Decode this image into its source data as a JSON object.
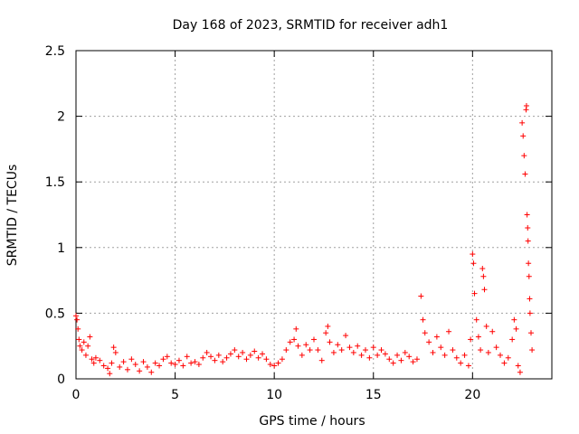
{
  "chart_data": {
    "type": "scatter",
    "title": "Day 168 of 2023, SRMTID for receiver adh1",
    "xlabel": "GPS time / hours",
    "ylabel": "SRMTID / TECUs",
    "xlim": [
      0,
      24
    ],
    "ylim": [
      0,
      2.5
    ],
    "xticks": [
      0,
      5,
      10,
      15,
      20
    ],
    "xtick_labels": [
      "0",
      "5",
      "10",
      "15",
      "20"
    ],
    "yticks": [
      0,
      0.5,
      1,
      1.5,
      2,
      2.5
    ],
    "ytick_labels": [
      "0",
      "0.5",
      "1",
      "1.5",
      "2",
      "2.5"
    ],
    "grid": true,
    "marker": "+",
    "color": "#ff0000",
    "series": [
      {
        "name": "SRMTID",
        "points": [
          [
            0.0,
            0.48
          ],
          [
            0.05,
            0.45
          ],
          [
            0.1,
            0.38
          ],
          [
            0.15,
            0.3
          ],
          [
            0.2,
            0.25
          ],
          [
            0.3,
            0.22
          ],
          [
            0.4,
            0.28
          ],
          [
            0.5,
            0.18
          ],
          [
            0.6,
            0.25
          ],
          [
            0.7,
            0.32
          ],
          [
            0.8,
            0.15
          ],
          [
            0.9,
            0.12
          ],
          [
            1.0,
            0.16
          ],
          [
            1.2,
            0.14
          ],
          [
            1.4,
            0.1
          ],
          [
            1.6,
            0.08
          ],
          [
            1.7,
            0.04
          ],
          [
            1.8,
            0.12
          ],
          [
            1.9,
            0.24
          ],
          [
            2.0,
            0.2
          ],
          [
            2.2,
            0.09
          ],
          [
            2.4,
            0.13
          ],
          [
            2.6,
            0.07
          ],
          [
            2.8,
            0.15
          ],
          [
            3.0,
            0.11
          ],
          [
            3.2,
            0.06
          ],
          [
            3.4,
            0.13
          ],
          [
            3.6,
            0.09
          ],
          [
            3.8,
            0.05
          ],
          [
            4.0,
            0.12
          ],
          [
            4.2,
            0.1
          ],
          [
            4.4,
            0.15
          ],
          [
            4.6,
            0.17
          ],
          [
            4.8,
            0.12
          ],
          [
            5.0,
            0.11
          ],
          [
            5.2,
            0.14
          ],
          [
            5.4,
            0.1
          ],
          [
            5.6,
            0.17
          ],
          [
            5.8,
            0.12
          ],
          [
            6.0,
            0.13
          ],
          [
            6.2,
            0.11
          ],
          [
            6.4,
            0.16
          ],
          [
            6.6,
            0.2
          ],
          [
            6.8,
            0.17
          ],
          [
            7.0,
            0.14
          ],
          [
            7.2,
            0.18
          ],
          [
            7.4,
            0.13
          ],
          [
            7.6,
            0.16
          ],
          [
            7.8,
            0.19
          ],
          [
            8.0,
            0.22
          ],
          [
            8.2,
            0.17
          ],
          [
            8.4,
            0.2
          ],
          [
            8.6,
            0.15
          ],
          [
            8.8,
            0.18
          ],
          [
            9.0,
            0.21
          ],
          [
            9.2,
            0.16
          ],
          [
            9.4,
            0.19
          ],
          [
            9.6,
            0.15
          ],
          [
            9.8,
            0.11
          ],
          [
            10.0,
            0.1
          ],
          [
            10.2,
            0.12
          ],
          [
            10.4,
            0.15
          ],
          [
            10.6,
            0.22
          ],
          [
            10.8,
            0.28
          ],
          [
            11.0,
            0.3
          ],
          [
            11.1,
            0.38
          ],
          [
            11.2,
            0.25
          ],
          [
            11.4,
            0.18
          ],
          [
            11.6,
            0.26
          ],
          [
            11.8,
            0.22
          ],
          [
            12.0,
            0.3
          ],
          [
            12.2,
            0.22
          ],
          [
            12.4,
            0.14
          ],
          [
            12.6,
            0.35
          ],
          [
            12.7,
            0.4
          ],
          [
            12.8,
            0.28
          ],
          [
            13.0,
            0.2
          ],
          [
            13.2,
            0.26
          ],
          [
            13.4,
            0.22
          ],
          [
            13.6,
            0.33
          ],
          [
            13.8,
            0.24
          ],
          [
            14.0,
            0.2
          ],
          [
            14.2,
            0.25
          ],
          [
            14.4,
            0.18
          ],
          [
            14.6,
            0.22
          ],
          [
            14.8,
            0.16
          ],
          [
            15.0,
            0.24
          ],
          [
            15.2,
            0.18
          ],
          [
            15.4,
            0.22
          ],
          [
            15.6,
            0.19
          ],
          [
            15.8,
            0.15
          ],
          [
            16.0,
            0.12
          ],
          [
            16.2,
            0.18
          ],
          [
            16.4,
            0.14
          ],
          [
            16.6,
            0.2
          ],
          [
            16.8,
            0.17
          ],
          [
            17.0,
            0.13
          ],
          [
            17.2,
            0.15
          ],
          [
            17.4,
            0.63
          ],
          [
            17.5,
            0.45
          ],
          [
            17.6,
            0.35
          ],
          [
            17.8,
            0.28
          ],
          [
            18.0,
            0.2
          ],
          [
            18.2,
            0.32
          ],
          [
            18.4,
            0.24
          ],
          [
            18.6,
            0.18
          ],
          [
            18.8,
            0.36
          ],
          [
            19.0,
            0.22
          ],
          [
            19.2,
            0.16
          ],
          [
            19.4,
            0.12
          ],
          [
            19.6,
            0.18
          ],
          [
            19.8,
            0.1
          ],
          [
            19.9,
            0.3
          ],
          [
            20.0,
            0.95
          ],
          [
            20.05,
            0.88
          ],
          [
            20.1,
            0.65
          ],
          [
            20.2,
            0.45
          ],
          [
            20.3,
            0.32
          ],
          [
            20.4,
            0.22
          ],
          [
            20.5,
            0.84
          ],
          [
            20.55,
            0.78
          ],
          [
            20.6,
            0.68
          ],
          [
            20.7,
            0.4
          ],
          [
            20.8,
            0.2
          ],
          [
            21.0,
            0.36
          ],
          [
            21.2,
            0.24
          ],
          [
            21.4,
            0.18
          ],
          [
            21.6,
            0.12
          ],
          [
            21.8,
            0.16
          ],
          [
            22.0,
            0.3
          ],
          [
            22.1,
            0.45
          ],
          [
            22.2,
            0.38
          ],
          [
            22.3,
            0.1
          ],
          [
            22.4,
            0.05
          ],
          [
            22.5,
            1.95
          ],
          [
            22.55,
            1.85
          ],
          [
            22.6,
            1.7
          ],
          [
            22.65,
            1.56
          ],
          [
            22.7,
            2.05
          ],
          [
            22.72,
            2.08
          ],
          [
            22.75,
            1.25
          ],
          [
            22.78,
            1.15
          ],
          [
            22.8,
            1.05
          ],
          [
            22.82,
            0.88
          ],
          [
            22.85,
            0.78
          ],
          [
            22.88,
            0.61
          ],
          [
            22.9,
            0.5
          ],
          [
            22.95,
            0.35
          ],
          [
            23.0,
            0.22
          ]
        ]
      }
    ]
  }
}
